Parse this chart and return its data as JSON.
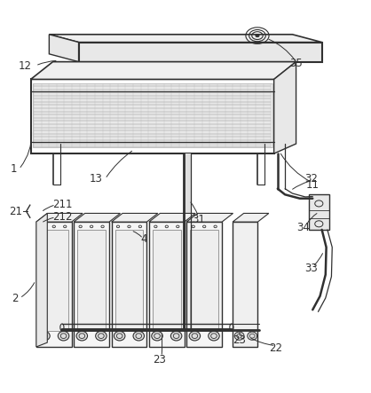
{
  "background_color": "#ffffff",
  "fig_width": 4.18,
  "fig_height": 4.43,
  "dpi": 100,
  "line_color": "#303030",
  "label_color": "#303030",
  "label_fontsize": 8.5,
  "grid_color": "#888888",
  "grid_color2": "#aaaaaa",
  "fill_light": "#e8e8e8",
  "fill_lighter": "#f0f0f0",
  "fill_white": "#ffffff"
}
